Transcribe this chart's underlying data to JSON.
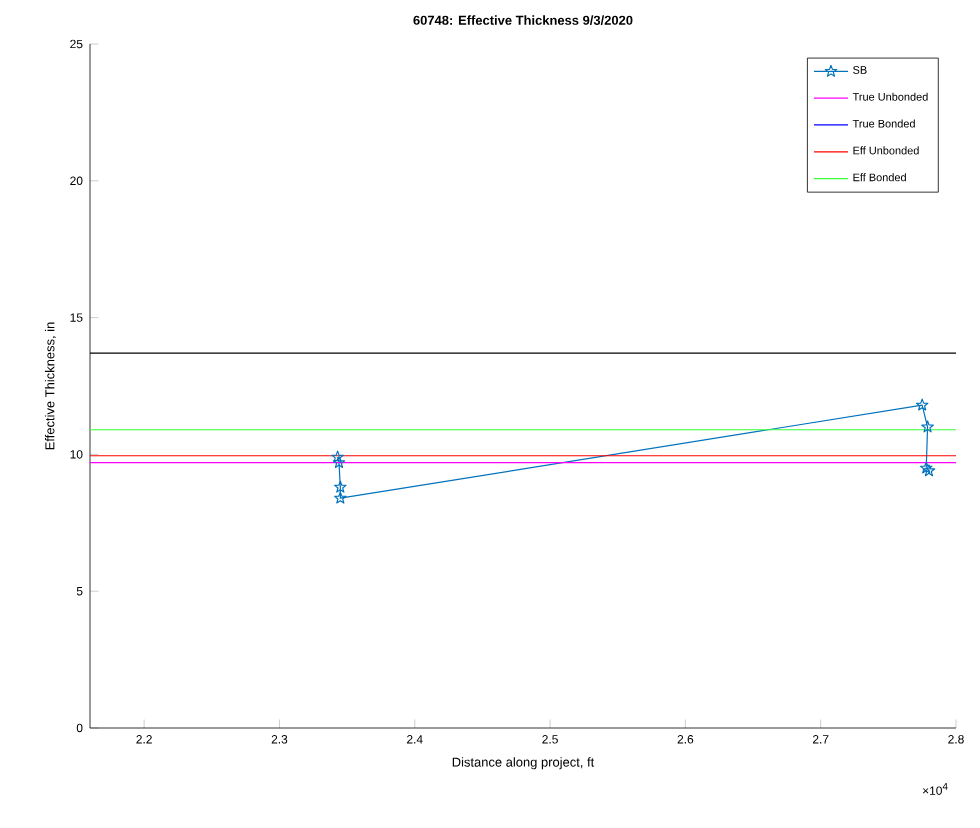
{
  "chart_data": {
    "type": "line",
    "title": "60748: Effective Thickness 9/3/2020",
    "xlabel": "Distance along project, ft",
    "ylabel": "Effective Thickness, in",
    "xlim": [
      2.16,
      2.8
    ],
    "ylim": [
      0,
      25
    ],
    "xticks": [
      2.2,
      2.3,
      2.4,
      2.5,
      2.6,
      2.7,
      2.8
    ],
    "yticks": [
      0,
      5,
      10,
      15,
      20,
      25
    ],
    "grid": false,
    "legend": "top right",
    "annotations": [
      "×10$^{4}$"
    ],
    "ref_lines": [
      {
        "axis": "y",
        "value": 13.7,
        "color": "#000000"
      }
    ],
    "series": [
      {
        "name": "SB",
        "color": "#0072bd",
        "marker": "star",
        "x": [
          2.343,
          2.344,
          2.345,
          2.345,
          2.775,
          2.779,
          2.778,
          2.78
        ],
        "values": [
          9.9,
          9.7,
          8.8,
          8.4,
          11.8,
          11.0,
          9.5,
          9.4
        ]
      },
      {
        "name": "True Unbonded",
        "color": "#ff00ff",
        "marker": "none",
        "x": [
          2.16,
          2.8
        ],
        "values": [
          9.7,
          9.7
        ]
      },
      {
        "name": "True Bonded",
        "color": "#0000ff",
        "marker": "none",
        "values": [
          null
        ]
      },
      {
        "name": "Eff Unbonded",
        "color": "#ff0000",
        "marker": "none",
        "x": [
          2.16,
          2.8
        ],
        "values": [
          9.95,
          9.95
        ]
      },
      {
        "name": "Eff Bonded",
        "color": "#33ff33",
        "marker": "none",
        "x": [
          2.16,
          2.8
        ],
        "values": [
          10.9,
          10.9
        ]
      }
    ]
  }
}
